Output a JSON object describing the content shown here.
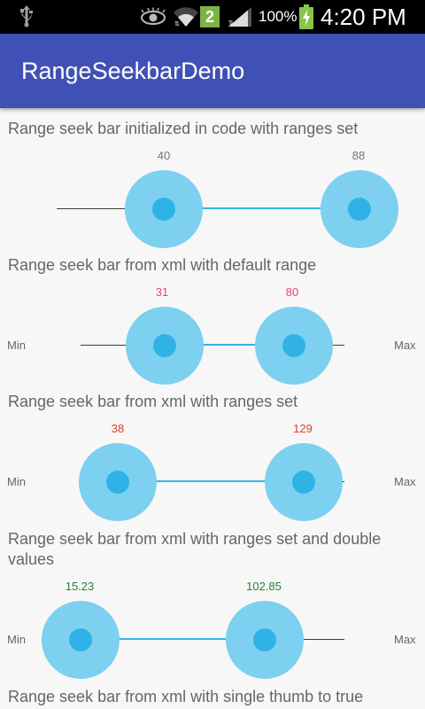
{
  "status_bar": {
    "battery_percent": "100%",
    "time": "4:20 PM",
    "notification_badge": "2",
    "icons": [
      "usb-icon",
      "eye-icon",
      "wifi-icon",
      "notification-badge-icon",
      "signal-icon",
      "battery-charging-icon"
    ]
  },
  "app_bar": {
    "title": "RangeSeekbarDemo",
    "color": "#3f51b5"
  },
  "colors": {
    "selected_track": "#33b5e5",
    "thumb": "#7dd0ef"
  },
  "sections": [
    {
      "title": "Range seek bar initialized in code with ranges set",
      "min_value": "40",
      "max_value": "88",
      "value_color": "#757575",
      "min_label": "",
      "max_label": ""
    },
    {
      "title": "Range seek bar from xml with default range",
      "min_value": "31",
      "max_value": "80",
      "value_color": "#ec407a",
      "min_label": "Min",
      "max_label": "Max"
    },
    {
      "title": "Range seek bar from xml with ranges set",
      "min_value": "38",
      "max_value": "129",
      "value_color": "#e53935",
      "min_label": "Min",
      "max_label": "Max"
    },
    {
      "title": "Range seek bar from xml with ranges set and double values",
      "min_value": "15.23",
      "max_value": "102.85",
      "value_color": "#2e7d32",
      "min_label": "Min",
      "max_label": "Max"
    },
    {
      "title": "Range seek bar from xml with single thumb to true"
    }
  ]
}
